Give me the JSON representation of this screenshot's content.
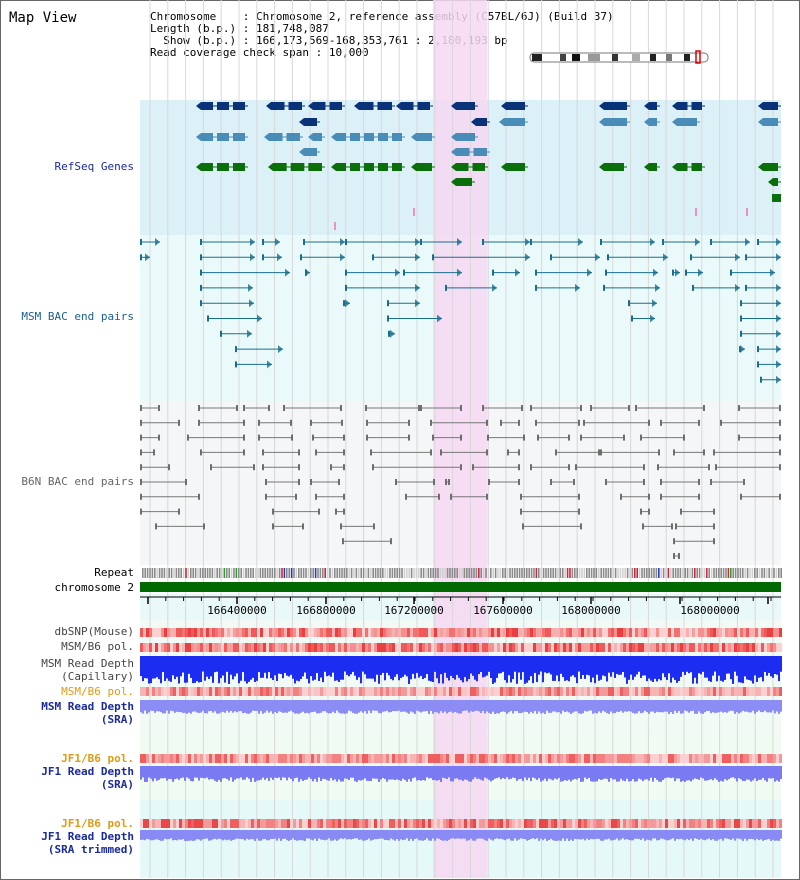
{
  "page": {
    "title": "Map View"
  },
  "info": {
    "chromosome_label": "Chromosome",
    "chromosome_value": "Chromosome 2, reference assembly (C57BL/6J) (Build 37)",
    "length_label": "Length (b.p.)",
    "length_value": "181,748,087",
    "show_label": "Show (b.p.)",
    "show_value": "166,173,569-168,353,761 : 2,180,193 bp",
    "span_label": "Read coverage check span",
    "span_value": "10,000"
  },
  "tracks": {
    "refseq": "RefSeq Genes",
    "msm_bac": "MSM BAC end pairs",
    "b6n_bac": "B6N BAC end pairs",
    "repeat": "Repeat",
    "chromosome": "chromosome 2",
    "dbsnp": "dbSNP(Mouse)",
    "msm_b6_pol": "MSM/B6 pol.",
    "msm_read_depth_cap_1": "MSM Read Depth",
    "msm_read_depth_cap_2": "(Capillary)",
    "msm_b6_pol_sra": "MSM/B6 pol.",
    "msm_read_depth_sra_1": "MSM Read Depth",
    "msm_read_depth_sra_2": "(SRA)",
    "jf1_b6_pol": "JF1/B6 pol.",
    "jf1_read_depth_1": "JF1 Read Depth",
    "jf1_read_depth_2": "(SRA)",
    "jf1_b6_pol_trim": "JF1/B6 pol.",
    "jf1_read_depth_trim_1": "JF1 Read Depth",
    "jf1_read_depth_trim_2": "(SRA trimmed)"
  },
  "axis": {
    "ticks": [
      "166400000",
      "166800000",
      "167200000",
      "167600000",
      "168000000"
    ]
  },
  "colors": {
    "refseq_bg": "#dcf0f8",
    "msm_bg": "#eafafa",
    "b6n_bg": "#f4f6f8",
    "highlight": "#f6d8f2",
    "navy": "#0a3278",
    "steel": "#4a8cb8",
    "green": "#0a6e0a",
    "teal": "#1a6e8c",
    "gray": "#6e6e6e",
    "label_navy": "#1a2a9a",
    "label_teal": "#1a6090",
    "label_gray": "#666666",
    "label_orange": "#e09a10"
  }
}
